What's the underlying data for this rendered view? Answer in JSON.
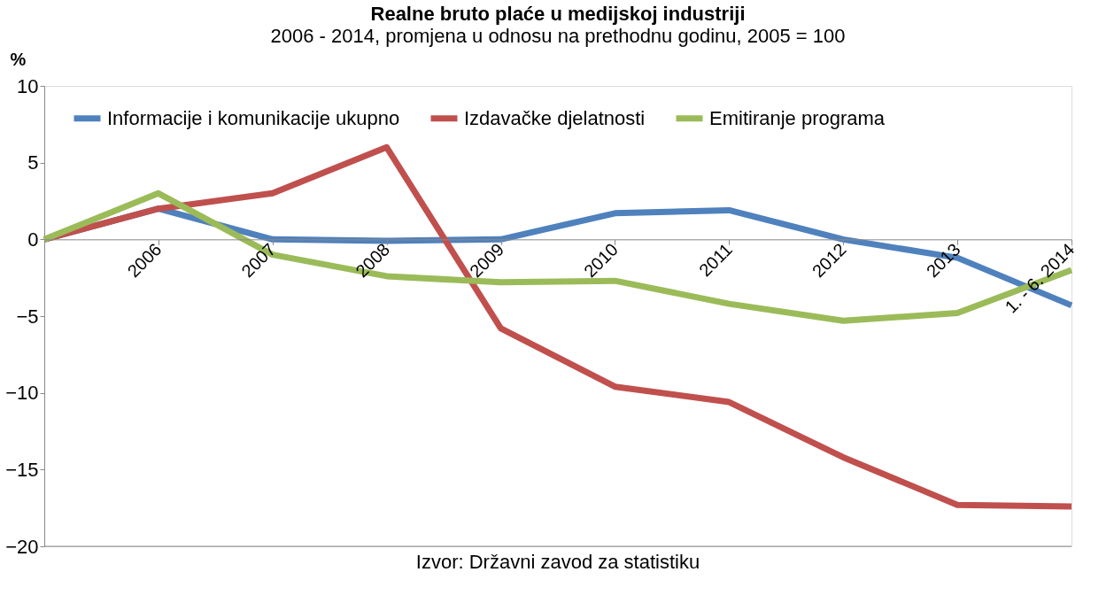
{
  "chart_data": {
    "type": "line",
    "title": "Realne bruto plaće u medijskoj industriji",
    "subtitle": "2006 - 2014, promjena u odnosu na prethodnu godinu, 2005 = 100",
    "ylabel": "%",
    "categories": [
      null,
      "2006",
      "2007",
      "2008",
      "2009",
      "2010",
      "2011",
      "2012",
      "2013",
      "1. - 6. 2014"
    ],
    "series": [
      {
        "name": "Informacije i komunikacije ukupno",
        "color": "#4f81bd",
        "values": [
          0,
          2,
          0,
          -0.1,
          0,
          1.7,
          1.9,
          0,
          -1.2,
          -4.3
        ]
      },
      {
        "name": "Izdavačke djelatnosti",
        "color": "#c0504d",
        "values": [
          0,
          2,
          3,
          6,
          -5.8,
          -9.6,
          -10.6,
          -14.2,
          -17.3,
          -17.4
        ]
      },
      {
        "name": "Emitiranje programa",
        "color": "#9bbb59",
        "values": [
          0,
          3,
          -1,
          -2.4,
          -2.8,
          -2.7,
          -4.2,
          -5.3,
          -4.8,
          -2.0
        ]
      }
    ],
    "ylim": [
      -20,
      10
    ],
    "yticks": [
      -20,
      -15,
      -10,
      -5,
      0,
      5,
      10
    ],
    "grid": false,
    "legend": "top",
    "marker": "none",
    "line_style": "solid",
    "annotations": [
      "Izvor: Državni zavod za statistiku"
    ]
  }
}
